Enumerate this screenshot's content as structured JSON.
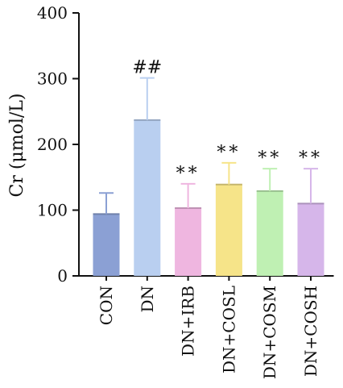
{
  "chart_data": {
    "type": "bar",
    "title": "",
    "xlabel": "",
    "ylabel": "Cr (μmol/L)",
    "ylim": [
      0,
      400
    ],
    "yticks": [
      0,
      100,
      200,
      300,
      400
    ],
    "grid": false,
    "categories": [
      "CON",
      "DN",
      "DN+IRB",
      "DN+COSL",
      "DN+COSM",
      "DN+COSH"
    ],
    "values": [
      94,
      237,
      103,
      139,
      129,
      110
    ],
    "errors": [
      32,
      64,
      37,
      33,
      34,
      53
    ],
    "annotations": [
      "",
      "##",
      "**",
      "**",
      "**",
      "**"
    ],
    "colors": [
      "#8ba0d4",
      "#b9cff0",
      "#efb6e0",
      "#f6e489",
      "#bff0b3",
      "#d6b6ea"
    ]
  }
}
